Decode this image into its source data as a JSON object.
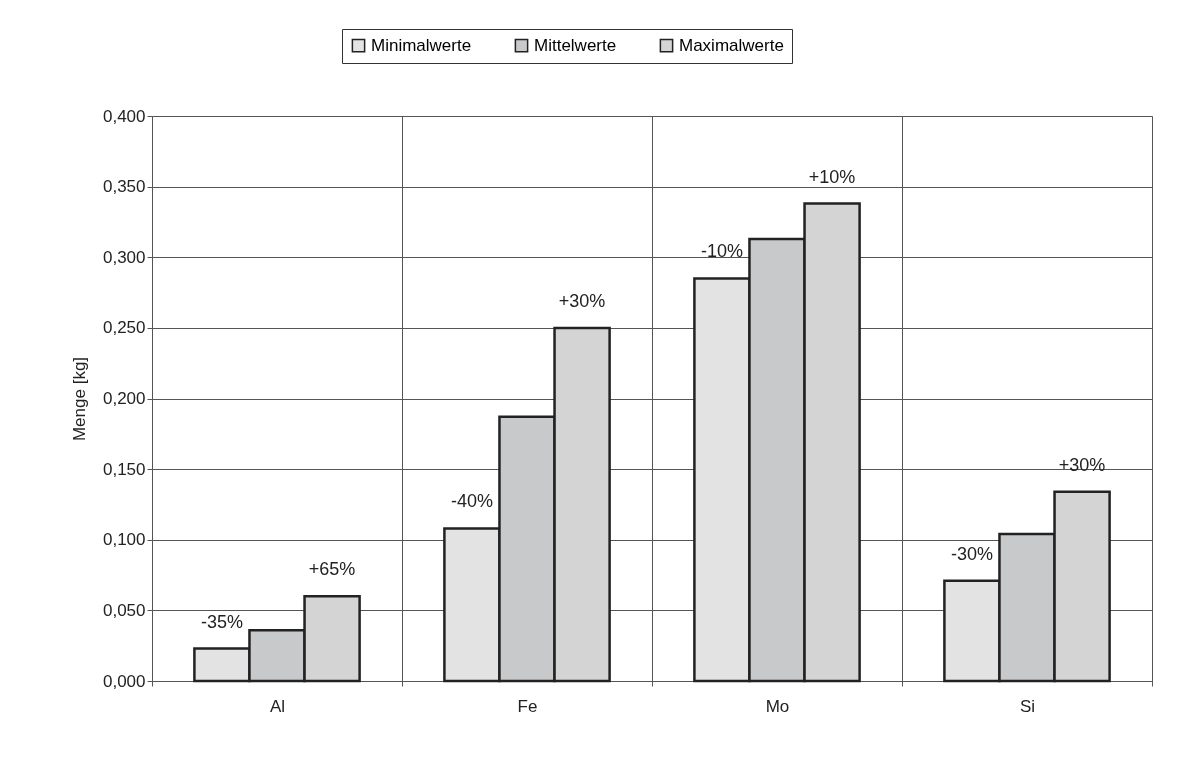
{
  "chart_data": {
    "type": "bar",
    "ylabel": "Menge [kg]",
    "categories": [
      "Al",
      "Fe",
      "Mo",
      "Si"
    ],
    "series": [
      {
        "name": "Minimalwerte",
        "color": "#e3e3e3",
        "values": [
          0.023,
          0.108,
          0.285,
          0.071
        ]
      },
      {
        "name": "Mittelwerte",
        "color": "#c8c9cb",
        "values": [
          0.036,
          0.187,
          0.313,
          0.104
        ]
      },
      {
        "name": "Maximalwerte",
        "color": "#d4d4d4",
        "values": [
          0.06,
          0.25,
          0.338,
          0.134
        ]
      }
    ],
    "annotations": [
      "-35%",
      "+65%",
      "-40%",
      "+30%",
      "-10%",
      "+10%",
      "-30%",
      "+30%"
    ],
    "ylim": [
      0,
      0.4
    ],
    "yticks": [
      {
        "value": 0,
        "label": "0,000"
      },
      {
        "value": 0.05,
        "label": "0,050"
      },
      {
        "value": 0.1,
        "label": "0,100"
      },
      {
        "value": 0.15,
        "label": "0,150"
      },
      {
        "value": 0.2,
        "label": "0,200"
      },
      {
        "value": 0.25,
        "label": "0,250"
      },
      {
        "value": 0.3,
        "label": "0,300"
      },
      {
        "value": 0.35,
        "label": "0,350"
      },
      {
        "value": 0.4,
        "label": "0,400"
      }
    ],
    "grid": true,
    "legend": "top"
  }
}
